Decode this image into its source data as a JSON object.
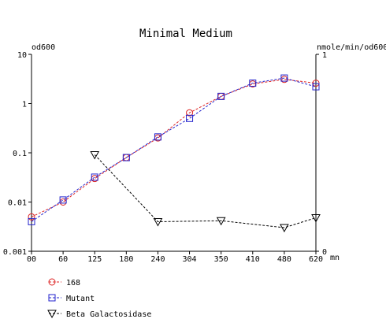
{
  "chart_data": {
    "type": "line",
    "title": "Minimal Medium",
    "left_axis_label": "od600",
    "right_axis_label": "nmole/min/od600",
    "x_unit": "mn",
    "left_scale": "log",
    "left_ylim": [
      0.001,
      10
    ],
    "left_ticks": [
      "0.001",
      "0.01",
      "0.1",
      "1",
      "10"
    ],
    "right_ylim": [
      0,
      1
    ],
    "right_ticks": [
      "0",
      "1"
    ],
    "x_ticks": [
      {
        "value": 0,
        "label": "00"
      },
      {
        "value": 60,
        "label": "60"
      },
      {
        "value": 125,
        "label": "125"
      },
      {
        "value": 180,
        "label": "180"
      },
      {
        "value": 240,
        "label": "240"
      },
      {
        "value": 304,
        "label": "304"
      },
      {
        "value": 350,
        "label": "350"
      },
      {
        "value": 410,
        "label": "410"
      },
      {
        "value": 480,
        "label": "480"
      },
      {
        "value": 620,
        "label": "620"
      }
    ],
    "xlim": [
      0,
      620
    ],
    "grid": false,
    "legend_position": "bottom-left",
    "series": [
      {
        "name": "168",
        "axis": "left",
        "color": "#dd2222",
        "marker": "circle",
        "x": [
          0,
          60,
          125,
          180,
          240,
          304,
          350,
          410,
          480,
          620
        ],
        "y": [
          0.005,
          0.01,
          0.03,
          0.08,
          0.2,
          0.65,
          1.4,
          2.5,
          3.1,
          2.6
        ]
      },
      {
        "name": "Mutant",
        "axis": "left",
        "color": "#2222cc",
        "marker": "square",
        "x": [
          0,
          60,
          125,
          180,
          240,
          304,
          350,
          410,
          480,
          620
        ],
        "y": [
          0.004,
          0.011,
          0.032,
          0.08,
          0.21,
          0.5,
          1.4,
          2.6,
          3.3,
          2.2
        ]
      },
      {
        "name": "Beta Galactosidase",
        "axis": "right",
        "color": "#000000",
        "marker": "triangle-down",
        "x": [
          125,
          240,
          350,
          480,
          620
        ],
        "y": [
          0.49,
          0.15,
          0.155,
          0.12,
          0.17
        ]
      }
    ]
  }
}
